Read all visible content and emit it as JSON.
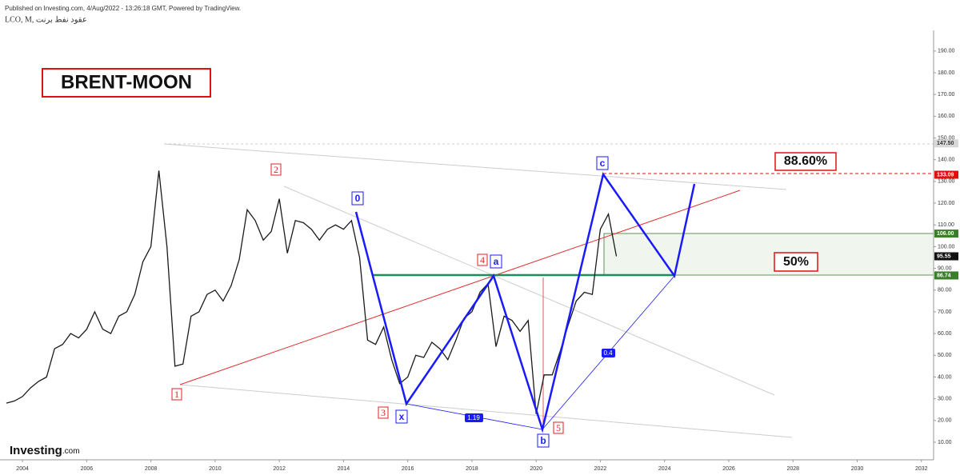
{
  "header": {
    "published": "Published on Investing.com, 4/Aug/2022 - 13:26:18 GMT, Powered by TradingView.",
    "symbol": "LCO, M, عقود نفط برنت"
  },
  "logo": [
    "Investing",
    ".com"
  ],
  "chart_data": {
    "type": "line",
    "title": "BRENT-MOON",
    "color": "#1a1a1a",
    "x": [
      2003.5,
      2003.75,
      2004,
      2004.25,
      2004.5,
      2004.75,
      2005,
      2005.25,
      2005.5,
      2005.75,
      2006,
      2006.25,
      2006.5,
      2006.75,
      2007,
      2007.25,
      2007.5,
      2007.75,
      2008,
      2008.25,
      2008.5,
      2008.75,
      2009,
      2009.25,
      2009.5,
      2009.75,
      2010,
      2010.25,
      2010.5,
      2010.75,
      2011,
      2011.25,
      2011.5,
      2011.75,
      2012,
      2012.25,
      2012.5,
      2012.75,
      2013,
      2013.25,
      2013.5,
      2013.75,
      2014,
      2014.25,
      2014.5,
      2014.75,
      2015,
      2015.25,
      2015.5,
      2015.75,
      2016,
      2016.25,
      2016.5,
      2016.75,
      2017,
      2017.25,
      2017.5,
      2017.75,
      2018,
      2018.25,
      2018.5,
      2018.75,
      2019,
      2019.25,
      2019.5,
      2019.75,
      2020,
      2020.25,
      2020.5,
      2020.75,
      2021,
      2021.25,
      2021.5,
      2021.75,
      2022,
      2022.25,
      2022.5
    ],
    "values": [
      28,
      29,
      31,
      35,
      38,
      40,
      53,
      55,
      60,
      58,
      62,
      70,
      62,
      60,
      68,
      70,
      78,
      93,
      100,
      135,
      100,
      45,
      46,
      68,
      70,
      78,
      80,
      75,
      82,
      94,
      117,
      112,
      103,
      107,
      122,
      97,
      112,
      111,
      108,
      103,
      108,
      110,
      108,
      112,
      95,
      57,
      55,
      63,
      48,
      37,
      40,
      50,
      49,
      56,
      53,
      48,
      57,
      67,
      70,
      79,
      83,
      54,
      68,
      66,
      61,
      66,
      23,
      41,
      41,
      52,
      64,
      75,
      79,
      78,
      108,
      115,
      95.55
    ],
    "xlim": [
      2003.3,
      2032.33
    ],
    "ylim": [
      1.9,
      213.5
    ],
    "xticks": [
      2004,
      2006,
      2008,
      2010,
      2012,
      2014,
      2016,
      2018,
      2020,
      2022,
      2024,
      2026,
      2028,
      2030,
      2032
    ],
    "yticks": [
      {
        "value": 10,
        "label": "10.00"
      },
      {
        "value": 20,
        "label": "20.00"
      },
      {
        "value": 30,
        "label": "30.00"
      },
      {
        "value": 40,
        "label": "40.00"
      },
      {
        "value": 50,
        "label": "50.00"
      },
      {
        "value": 60,
        "label": "60.00"
      },
      {
        "value": 70,
        "label": "70.00"
      },
      {
        "value": 80,
        "label": "80.00"
      },
      {
        "value": 90,
        "label": "90.00"
      },
      {
        "value": 100,
        "label": "100.00"
      },
      {
        "value": 110,
        "label": "110.00"
      },
      {
        "value": 120,
        "label": "120.00"
      },
      {
        "value": 130,
        "label": "130.00"
      },
      {
        "value": 140,
        "label": "140.00"
      },
      {
        "value": 150,
        "label": "150.00"
      },
      {
        "value": 160,
        "label": "160.00"
      },
      {
        "value": 170,
        "label": "170.00"
      },
      {
        "value": 180,
        "label": "180.00"
      },
      {
        "value": 190,
        "label": "190.00"
      }
    ],
    "levels": [
      {
        "value": 147.5,
        "label": "147.50",
        "color": "#d8d8d8"
      },
      {
        "value": 133.09,
        "label": "133.09",
        "color": "#e01010"
      },
      {
        "value": 106,
        "label": "106.00",
        "color": "#3a7d2a"
      },
      {
        "value": 95.55,
        "label": "95.55",
        "color": "#111111"
      },
      {
        "value": 86.74,
        "label": "86.74",
        "color": "#3a7d2a"
      }
    ],
    "annotations": [
      "88.60%",
      "50%"
    ],
    "pattern_labels": [
      "0",
      "a",
      "x",
      "b",
      "c"
    ],
    "wave_labels": [
      "1",
      "2",
      "3",
      "4",
      "5"
    ],
    "ratio_labels": [
      1.19,
      0.4
    ]
  }
}
